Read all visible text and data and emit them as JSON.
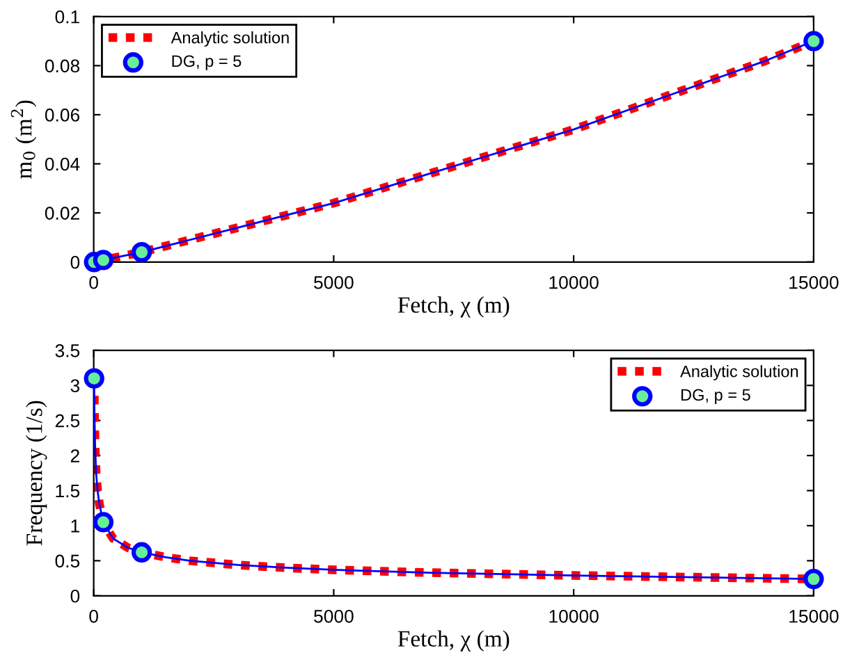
{
  "chart_data": [
    {
      "type": "line",
      "xlabel": "Fetch, χ (m)",
      "ylabel": "m$_{0}$ (m$^{2}$)",
      "xlim": [
        0,
        15000
      ],
      "ylim": [
        0,
        0.1
      ],
      "xticks": [
        0,
        5000,
        10000,
        15000
      ],
      "yticks": [
        0,
        0.02,
        0.04,
        0.06,
        0.08,
        0.1
      ],
      "grid": false,
      "legend": "top left",
      "series": [
        {
          "name": "Analytic solution",
          "color": "#ff0000",
          "line_style": "dotted",
          "marker": "none",
          "x": [
            8,
            200,
            1000,
            2000,
            3000,
            4000,
            5000,
            6000,
            7000,
            8000,
            9000,
            10000,
            11000,
            12000,
            13000,
            14000,
            15000
          ],
          "values": [
            0,
            0.0008,
            0.004,
            0.009,
            0.014,
            0.019,
            0.024,
            0.03,
            0.036,
            0.042,
            0.048,
            0.054,
            0.061,
            0.068,
            0.075,
            0.082,
            0.09
          ]
        },
        {
          "color": "#0000ff",
          "line_style": "solid",
          "marker": "none",
          "x": [
            8,
            200,
            1000,
            2000,
            3000,
            4000,
            5000,
            6000,
            7000,
            8000,
            9000,
            10000,
            11000,
            12000,
            13000,
            14000,
            15000
          ],
          "values": [
            0,
            0.0008,
            0.004,
            0.009,
            0.014,
            0.019,
            0.024,
            0.03,
            0.036,
            0.042,
            0.048,
            0.054,
            0.061,
            0.068,
            0.075,
            0.082,
            0.09
          ]
        },
        {
          "name": "DG, p = 5",
          "type": "scatter",
          "color": "#0000ff",
          "marker": "circle",
          "x": [
            8,
            200,
            1000,
            15000
          ],
          "values": [
            0,
            0.0008,
            0.004,
            0.09
          ]
        }
      ]
    },
    {
      "type": "line",
      "xlabel": "Fetch, χ (m)",
      "ylabel": "Frequency (1/s)",
      "xlim": [
        0,
        15000
      ],
      "ylim": [
        0,
        3.5
      ],
      "xticks": [
        0,
        5000,
        10000,
        15000
      ],
      "yticks": [
        0,
        0.5,
        1,
        1.5,
        2,
        2.5,
        3,
        3.5
      ],
      "grid": false,
      "legend": "top right",
      "series": [
        {
          "name": "Analytic solution",
          "color": "#ff0000",
          "line_style": "dotted",
          "marker": "none",
          "x": [
            8,
            15,
            30,
            50,
            80,
            120,
            200,
            400,
            700,
            1000,
            1500,
            2000,
            3000,
            4000,
            5000,
            7000,
            10000,
            12000,
            15000
          ],
          "values": [
            3.1,
            2.6,
            2.1,
            1.75,
            1.5,
            1.3,
            1.05,
            0.82,
            0.69,
            0.62,
            0.55,
            0.5,
            0.44,
            0.4,
            0.37,
            0.33,
            0.29,
            0.27,
            0.24
          ]
        },
        {
          "color": "#0000ff",
          "line_style": "solid",
          "marker": "none",
          "x": [
            8,
            15,
            30,
            50,
            80,
            120,
            200,
            400,
            700,
            1000,
            1500,
            2000,
            3000,
            4000,
            5000,
            7000,
            10000,
            12000,
            15000
          ],
          "values": [
            3.1,
            2.6,
            2.1,
            1.75,
            1.5,
            1.3,
            1.05,
            0.82,
            0.69,
            0.62,
            0.55,
            0.5,
            0.44,
            0.4,
            0.37,
            0.33,
            0.29,
            0.27,
            0.24
          ]
        },
        {
          "name": "DG, p = 5",
          "type": "scatter",
          "color": "#0000ff",
          "marker": "circle",
          "x": [
            8,
            200,
            1000,
            15000
          ],
          "values": [
            3.1,
            1.05,
            0.62,
            0.24
          ]
        }
      ]
    }
  ]
}
